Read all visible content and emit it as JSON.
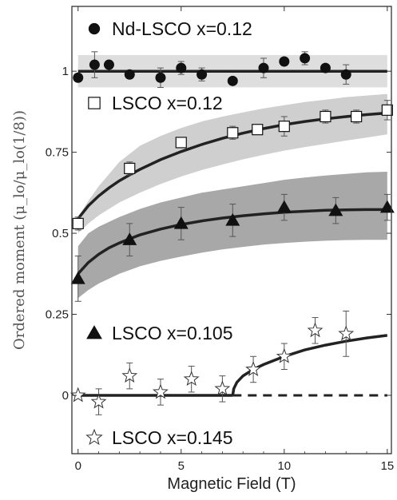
{
  "chart_data": {
    "type": "scatter",
    "title": "",
    "xlabel": "Magnetic Field (T)",
    "ylabel": "Ordered moment (μ_lo/μ_lo(1/8))",
    "xlim": [
      -0.3,
      15.2
    ],
    "ylim": [
      -0.18,
      1.2
    ],
    "x_ticks": [
      0,
      5,
      10,
      15
    ],
    "x_tick_labels": [
      "0",
      "5",
      "10",
      "15"
    ],
    "y_ticks": [
      0,
      0.25,
      0.5,
      0.75,
      1
    ],
    "y_tick_labels": [
      "0",
      "0.25",
      "0.5",
      "0.75",
      "1"
    ],
    "grid": false,
    "legend_placement": "inline",
    "series": [
      {
        "name": "Nd-LSCO x=0.12",
        "marker": "filled-circle",
        "color": "#111111",
        "x": [
          0,
          0.8,
          1.5,
          2.5,
          4.0,
          5.0,
          6.0,
          7.5,
          9.0,
          10.0,
          11.0,
          12.0,
          13.0
        ],
        "y": [
          0.98,
          1.02,
          1.02,
          0.99,
          0.98,
          1.01,
          0.99,
          0.97,
          1.01,
          1.03,
          1.04,
          1.01,
          0.99
        ],
        "err": [
          0.0,
          0.04,
          0.0,
          0.0,
          0.03,
          0.02,
          0.02,
          0.0,
          0.03,
          0.0,
          0.02,
          0.0,
          0.03
        ],
        "fit": {
          "x": [
            0,
            15
          ],
          "y": [
            1.0,
            1.0
          ]
        },
        "band": {
          "x": [
            0,
            15
          ],
          "lower": [
            0.95,
            0.95
          ],
          "upper": [
            1.05,
            1.05
          ],
          "color": "#dedede"
        }
      },
      {
        "name": "LSCO x=0.12",
        "marker": "open-square",
        "color": "#111111",
        "x": [
          0,
          2.5,
          5.0,
          7.5,
          8.7,
          10.0,
          12.0,
          13.5,
          15.0
        ],
        "y": [
          0.53,
          0.7,
          0.78,
          0.81,
          0.82,
          0.83,
          0.86,
          0.86,
          0.88
        ],
        "err": [
          0.02,
          0.02,
          0.0,
          0.02,
          0.0,
          0.03,
          0.02,
          0.02,
          0.03
        ],
        "fit": {
          "x": [
            0,
            0.5,
            1,
            1.5,
            2,
            2.5,
            3,
            4,
            5,
            6,
            7,
            8,
            9,
            10,
            11,
            12,
            13,
            14,
            15
          ],
          "y": [
            0.545,
            0.585,
            0.615,
            0.64,
            0.662,
            0.68,
            0.697,
            0.727,
            0.752,
            0.774,
            0.793,
            0.809,
            0.823,
            0.835,
            0.845,
            0.853,
            0.86,
            0.866,
            0.871
          ]
        },
        "band": {
          "x": [
            0,
            0.5,
            1,
            2,
            3,
            4,
            5,
            6,
            7,
            8,
            9,
            10,
            11,
            12,
            13,
            14,
            15
          ],
          "lower": [
            0.5,
            0.53,
            0.555,
            0.595,
            0.625,
            0.652,
            0.675,
            0.695,
            0.712,
            0.728,
            0.742,
            0.755,
            0.766,
            0.776,
            0.786,
            0.795,
            0.805
          ],
          "upper": [
            0.55,
            0.6,
            0.645,
            0.72,
            0.77,
            0.8,
            0.825,
            0.845,
            0.86,
            0.873,
            0.885,
            0.895,
            0.905,
            0.912,
            0.92,
            0.925,
            0.93
          ],
          "color": "#cfcfcf"
        }
      },
      {
        "name": "LSCO x=0.105",
        "marker": "filled-triangle",
        "color": "#111111",
        "x": [
          0,
          2.5,
          5.0,
          7.5,
          10.0,
          12.5,
          15.0
        ],
        "y": [
          0.36,
          0.48,
          0.53,
          0.54,
          0.58,
          0.57,
          0.58
        ],
        "err": [
          0.07,
          0.05,
          0.05,
          0.05,
          0.04,
          0.04,
          0.04
        ],
        "fit": {
          "x": [
            0,
            0.5,
            1,
            1.5,
            2,
            2.5,
            3,
            4,
            5,
            6,
            7,
            8,
            9,
            10,
            11,
            12,
            13,
            14,
            15
          ],
          "y": [
            0.375,
            0.41,
            0.435,
            0.455,
            0.47,
            0.483,
            0.495,
            0.513,
            0.527,
            0.538,
            0.547,
            0.554,
            0.56,
            0.565,
            0.568,
            0.571,
            0.572,
            0.573,
            0.573
          ]
        },
        "band": {
          "x": [
            0,
            0.5,
            1,
            2,
            3,
            4,
            5,
            6,
            7,
            8,
            9,
            10,
            11,
            12,
            13,
            14,
            15
          ],
          "lower": [
            0.3,
            0.325,
            0.345,
            0.375,
            0.398,
            0.415,
            0.428,
            0.44,
            0.45,
            0.458,
            0.465,
            0.47,
            0.474,
            0.477,
            0.479,
            0.48,
            0.48
          ],
          "upper": [
            0.46,
            0.5,
            0.52,
            0.55,
            0.575,
            0.595,
            0.61,
            0.625,
            0.635,
            0.645,
            0.655,
            0.665,
            0.672,
            0.678,
            0.683,
            0.688,
            0.69
          ],
          "color": "#a8a8a8"
        }
      },
      {
        "name": "LSCO x=0.145",
        "marker": "open-star",
        "color": "#111111",
        "x": [
          0,
          1.0,
          2.5,
          4.0,
          5.5,
          7.0,
          8.5,
          10.0,
          11.5,
          13.0
        ],
        "y": [
          0.0,
          -0.02,
          0.06,
          0.01,
          0.05,
          0.02,
          0.08,
          0.12,
          0.2,
          0.19
        ],
        "err": [
          0.0,
          0.04,
          0.04,
          0.04,
          0.04,
          0.04,
          0.04,
          0.04,
          0.04,
          0.07
        ],
        "fit_flat": {
          "x": [
            0,
            7.5
          ],
          "y": [
            0,
            0
          ]
        },
        "fit_rise": {
          "x": [
            7.5,
            7.55,
            7.7,
            8,
            8.5,
            9,
            10,
            11,
            12,
            13,
            14,
            15
          ],
          "y": [
            0,
            0.02,
            0.04,
            0.06,
            0.08,
            0.095,
            0.12,
            0.14,
            0.155,
            0.167,
            0.177,
            0.185
          ]
        },
        "dashed": {
          "x": [
            7.5,
            15
          ],
          "y": [
            0,
            0
          ]
        }
      }
    ],
    "legend_entries": [
      {
        "series": 0,
        "label": "Nd-LSCO x=0.12"
      },
      {
        "series": 1,
        "label": "LSCO x=0.12"
      },
      {
        "series": 2,
        "label": "LSCO x=0.105"
      },
      {
        "series": 3,
        "label": "LSCO x=0.145"
      }
    ]
  }
}
